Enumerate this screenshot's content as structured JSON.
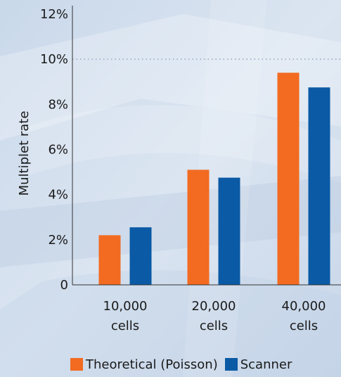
{
  "chart_data": {
    "type": "bar",
    "categories": [
      [
        "10,000",
        "cells"
      ],
      [
        "20,000",
        "cells"
      ],
      [
        "40,000",
        "cells"
      ]
    ],
    "series": [
      {
        "name": "Theoretical (Poisson)",
        "color": "#f26b21",
        "values": [
          2.2,
          5.1,
          9.4
        ]
      },
      {
        "name": "Scanner",
        "color": "#0a5aa5",
        "values": [
          2.55,
          4.75,
          8.75
        ]
      }
    ],
    "ylabel": "Multiplet rate",
    "ylim": [
      0,
      12
    ],
    "yticks": [
      {
        "value": 0,
        "label": "0"
      },
      {
        "value": 2,
        "label": "2%"
      },
      {
        "value": 4,
        "label": "4%"
      },
      {
        "value": 6,
        "label": "6%"
      },
      {
        "value": 8,
        "label": "8%"
      },
      {
        "value": 10,
        "label": "10%"
      },
      {
        "value": 12,
        "label": "12%"
      }
    ],
    "reference_line": 10,
    "legend_position": "bottom-right",
    "grid": false
  }
}
